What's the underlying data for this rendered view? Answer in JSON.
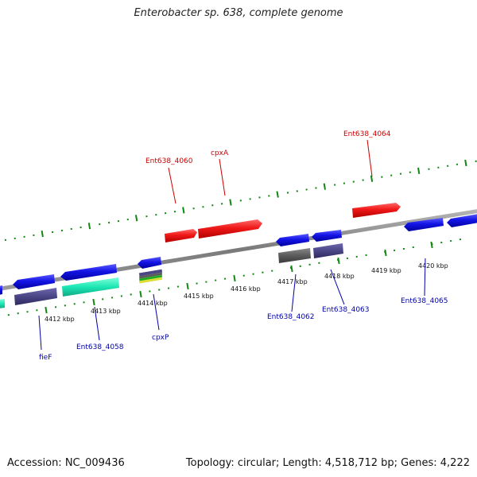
{
  "header": {
    "title": "Enterobacter sp. 638, complete genome"
  },
  "footer": {
    "accession": "Accession: NC_009436",
    "summary": "Topology: circular; Length: 4,518,712 bp; Genes: 4,222"
  },
  "scale": {
    "ticks": [
      "4412 kbp",
      "4413 kbp",
      "4414 kbp",
      "4415 kbp",
      "4416 kbp",
      "4417 kbp",
      "4418 kbp",
      "4419 kbp",
      "4420 kbp"
    ]
  },
  "genes": {
    "top": [
      "Ent638_4060",
      "cpxA",
      "Ent638_4064"
    ],
    "bottom": [
      "fieF",
      "Ent638_4058",
      "cpxP",
      "Ent638_4062",
      "Ent638_4063",
      "Ent638_4065"
    ]
  },
  "colors": {
    "forward_strand": "#ee1111",
    "reverse_strand": "#1010e0",
    "scale_ticks": "#118811",
    "backbone": "#808080",
    "top_label": "#cc0000",
    "bottom_label": "#0000aa",
    "cds_slate": "#4a4585",
    "cds_gray": "#5b5b5b",
    "cds_teal": "#1de6b4"
  }
}
